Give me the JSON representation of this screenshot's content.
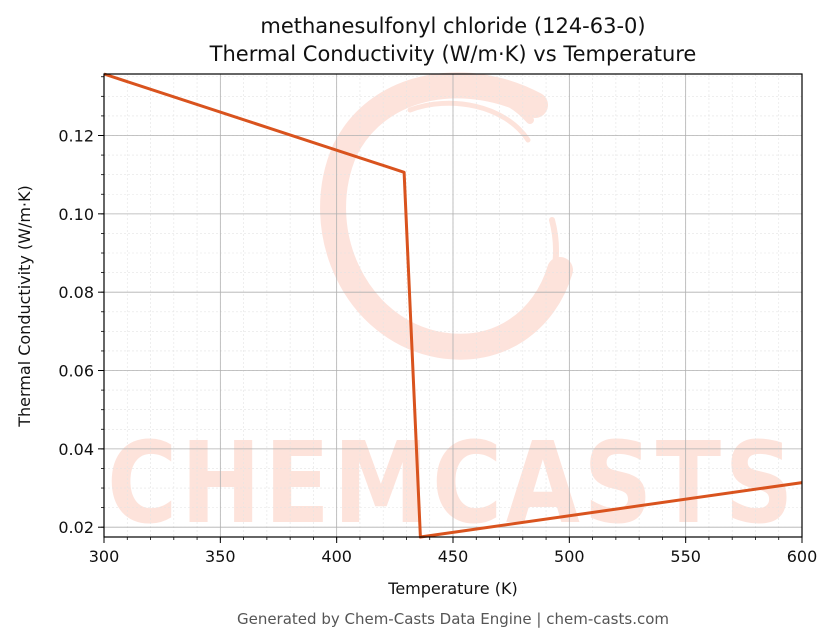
{
  "chart_data": {
    "type": "line",
    "title": "methanesulfonyl chloride (124-63-0)",
    "subtitle": "Thermal Conductivity (W/m·K) vs Temperature",
    "xlabel": "Temperature (K)",
    "ylabel": "Thermal Conductivity (W/m·K)",
    "xlim": [
      300,
      600
    ],
    "ylim": [
      0.0175,
      0.1357
    ],
    "xticks": [
      300,
      350,
      400,
      450,
      500,
      550,
      600
    ],
    "yticks": [
      0.02,
      0.04,
      0.06,
      0.08,
      0.1,
      0.12
    ],
    "xtick_labels": [
      "300",
      "350",
      "400",
      "450",
      "500",
      "550",
      "600"
    ],
    "ytick_labels": [
      "0.02",
      "0.04",
      "0.06",
      "0.08",
      "0.10",
      "0.12"
    ],
    "grid": true,
    "legend": "none",
    "series": [
      {
        "color": "#d9531e",
        "x": [
          300,
          429,
          436,
          600
        ],
        "y": [
          0.1357,
          0.1106,
          0.0175,
          0.0314
        ]
      }
    ]
  },
  "watermark": {
    "text": "CHEMCASTS",
    "color": "#fde0d8"
  },
  "footer": "Generated by Chem-Casts Data Engine | chem-casts.com"
}
